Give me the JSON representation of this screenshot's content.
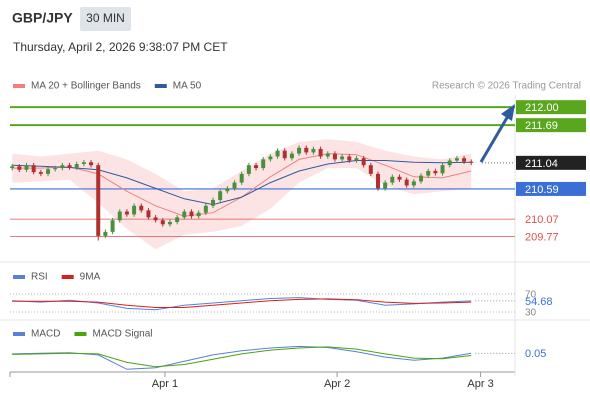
{
  "header": {
    "symbol": "GBP/JPY",
    "interval": "30 MIN",
    "datetime": "Thursday, April 2, 2026 9:38:07 PM CET"
  },
  "chart_data": [
    {
      "type": "candlestick",
      "credit": "Research © 2026 Trading Central",
      "xlim": [
        -0.3,
        70.1
      ],
      "ylim": [
        209.33,
        212.21
      ],
      "up_color": "#4a8f3c",
      "down_color": "#b03030",
      "open": [
        210.95,
        210.98,
        210.92,
        211,
        210.88,
        210.85,
        210.93,
        210.95,
        211,
        210.96,
        211.02,
        211.05,
        211,
        209.78,
        209.85,
        210.05,
        210.2,
        210.15,
        210.3,
        210.22,
        210.1,
        210.05,
        209.98,
        210.02,
        210.1,
        210.2,
        210.12,
        210.18,
        210.3,
        210.4,
        210.55,
        210.6,
        210.7,
        210.85,
        211,
        210.95,
        211.1,
        211.15,
        211.25,
        211.12,
        211.2,
        211.3,
        211.22,
        211.28,
        211.15,
        211.2,
        211.1,
        211.15,
        211.08,
        211.12,
        211,
        210.85,
        210.6,
        210.7,
        210.8,
        210.75,
        210.65,
        210.72,
        210.82,
        210.9,
        210.86,
        211,
        211.08,
        211.12,
        211.06
      ],
      "high": [
        211.02,
        211.02,
        211.04,
        211.04,
        210.92,
        210.97,
        210.99,
        211.04,
        211.04,
        211.06,
        211.09,
        211.09,
        211.04,
        209.89,
        210.09,
        210.24,
        210.24,
        210.34,
        210.34,
        210.26,
        210.14,
        210.09,
        210.06,
        210.14,
        210.24,
        210.24,
        210.22,
        210.34,
        210.44,
        210.59,
        210.64,
        210.74,
        210.89,
        211.04,
        211.04,
        211.14,
        211.19,
        211.29,
        211.29,
        211.24,
        211.34,
        211.34,
        211.32,
        211.32,
        211.24,
        211.24,
        211.19,
        211.19,
        211.16,
        211.16,
        211.04,
        210.89,
        210.74,
        210.84,
        210.84,
        210.79,
        210.76,
        210.86,
        210.94,
        210.94,
        211.04,
        211.12,
        211.16,
        211.16,
        211.1
      ],
      "low": [
        210.91,
        210.88,
        210.88,
        210.84,
        210.81,
        210.81,
        210.89,
        210.91,
        210.92,
        210.92,
        210.98,
        210.96,
        209.7,
        209.74,
        209.81,
        210.01,
        210.11,
        210.11,
        210.18,
        210.06,
        210.01,
        209.94,
        209.94,
        209.98,
        210.06,
        210.08,
        210.08,
        210.14,
        210.26,
        210.36,
        210.51,
        210.56,
        210.66,
        210.81,
        210.91,
        210.91,
        211.06,
        211.11,
        211.08,
        211.08,
        211.16,
        211.18,
        211.18,
        211.11,
        211.11,
        211.06,
        211.06,
        211.04,
        211.04,
        210.96,
        210.81,
        210.56,
        210.56,
        210.66,
        210.71,
        210.61,
        210.61,
        210.68,
        210.78,
        210.82,
        210.82,
        210.96,
        211.04,
        211.02,
        211
      ],
      "close": [
        210.98,
        210.92,
        211,
        210.88,
        210.85,
        210.93,
        210.95,
        211,
        210.96,
        211.02,
        211.05,
        211,
        209.78,
        209.85,
        210.05,
        210.2,
        210.15,
        210.3,
        210.22,
        210.1,
        210.05,
        209.98,
        210.02,
        210.1,
        210.2,
        210.12,
        210.18,
        210.3,
        210.4,
        210.55,
        210.6,
        210.7,
        210.85,
        211,
        210.95,
        211.1,
        211.15,
        211.25,
        211.12,
        211.2,
        211.3,
        211.22,
        211.28,
        211.15,
        211.2,
        211.1,
        211.15,
        211.08,
        211.12,
        211,
        210.85,
        210.6,
        210.7,
        210.8,
        210.75,
        210.65,
        210.72,
        210.82,
        210.9,
        210.86,
        211,
        211.08,
        211.12,
        211.06,
        211.04
      ],
      "series": [
        {
          "name": "MA 20 + Bollinger Bands",
          "color": "#f08080",
          "band_color": "#fde4e4",
          "x": [
            0,
            4,
            8,
            12,
            16,
            20,
            24,
            28,
            32,
            36,
            40,
            44,
            48,
            52,
            56,
            60,
            64
          ],
          "values": [
            210.95,
            210.95,
            210.97,
            210.85,
            210.55,
            210.3,
            210.12,
            210.18,
            210.45,
            210.8,
            211.1,
            211.2,
            211.18,
            211,
            210.8,
            210.78,
            210.9
          ],
          "upper": [
            211.2,
            211.15,
            211.2,
            211.25,
            211.1,
            210.85,
            210.55,
            210.6,
            210.9,
            211.2,
            211.4,
            211.45,
            211.4,
            211.25,
            211.15,
            211.1,
            211.2
          ],
          "lower": [
            210.7,
            210.72,
            210.75,
            210.35,
            209.9,
            209.55,
            209.8,
            209.85,
            209.95,
            210.25,
            210.7,
            210.95,
            210.95,
            210.65,
            210.5,
            210.55,
            210.6
          ]
        },
        {
          "name": "MA 50",
          "color": "#2f5b9e",
          "x": [
            0,
            4,
            8,
            12,
            16,
            20,
            24,
            28,
            32,
            36,
            40,
            44,
            48,
            52,
            56,
            60,
            64
          ],
          "values": [
            211,
            210.98,
            210.96,
            210.92,
            210.78,
            210.6,
            210.42,
            210.32,
            210.45,
            210.7,
            210.9,
            211.02,
            211.08,
            211.08,
            211.05,
            211.04,
            211.05
          ]
        }
      ],
      "levels": [
        {
          "value": 212,
          "label": "212.00",
          "color": "#5aa71e",
          "style": "box"
        },
        {
          "value": 211.69,
          "color": "#5aa71e",
          "style": "box"
        },
        {
          "value": 211.04,
          "color": "#222222",
          "style": "current"
        },
        {
          "value": 210.59,
          "color": "#3b6fd6",
          "style": "box"
        },
        {
          "value": 210.07,
          "color": "#e05050",
          "style": "text"
        },
        {
          "value": 209.77,
          "color": "#e05050",
          "style": "text"
        }
      ]
    },
    {
      "type": "line",
      "xlim": [
        -0.3,
        70.1
      ],
      "ylim": [
        21,
        90
      ],
      "yticks": [
        70,
        30
      ],
      "series": [
        {
          "name": "RSI",
          "color": "#5b7fd6",
          "x": [
            0,
            4,
            8,
            12,
            16,
            20,
            24,
            28,
            32,
            36,
            40,
            44,
            48,
            52,
            56,
            60,
            64
          ],
          "values": [
            55,
            52,
            56,
            50,
            38,
            35,
            45,
            50,
            55,
            60,
            62,
            58,
            56,
            45,
            48,
            52,
            54.68
          ]
        },
        {
          "name": "9MA",
          "color": "#d62020",
          "x": [
            0,
            4,
            8,
            12,
            16,
            20,
            24,
            28,
            32,
            36,
            40,
            44,
            48,
            52,
            56,
            60,
            64
          ],
          "values": [
            54,
            54,
            54,
            52,
            45,
            40,
            40,
            45,
            50,
            55,
            58,
            59,
            57,
            52,
            49,
            50,
            52
          ]
        }
      ]
    },
    {
      "type": "line",
      "xlim": [
        -0.3,
        70.1
      ],
      "ylim": [
        -0.3,
        0.3
      ],
      "xticks": [
        {
          "value": 21.3,
          "label": "Apr 1"
        },
        {
          "value": 45.3,
          "label": "Apr 2"
        },
        {
          "value": 65.3,
          "label": "Apr 3"
        }
      ],
      "series": [
        {
          "name": "MACD",
          "color": "#5b7fd6",
          "x": [
            0,
            4,
            8,
            12,
            16,
            20,
            24,
            28,
            32,
            36,
            40,
            44,
            48,
            52,
            56,
            60,
            64
          ],
          "values": [
            0.04,
            0.05,
            0.06,
            0.02,
            -0.25,
            -0.22,
            -0.1,
            0.02,
            0.1,
            0.15,
            0.18,
            0.16,
            0.08,
            -0.02,
            -0.08,
            -0.04,
            0.05
          ]
        },
        {
          "name": "MACD Signal",
          "color": "#4ca30d",
          "x": [
            0,
            4,
            8,
            12,
            16,
            20,
            24,
            28,
            32,
            36,
            40,
            44,
            48,
            52,
            56,
            60,
            64
          ],
          "values": [
            0.03,
            0.04,
            0.05,
            0.04,
            -0.12,
            -0.2,
            -0.16,
            -0.06,
            0.04,
            0.11,
            0.15,
            0.17,
            0.13,
            0.04,
            -0.04,
            -0.05,
            0.01
          ]
        }
      ]
    }
  ]
}
